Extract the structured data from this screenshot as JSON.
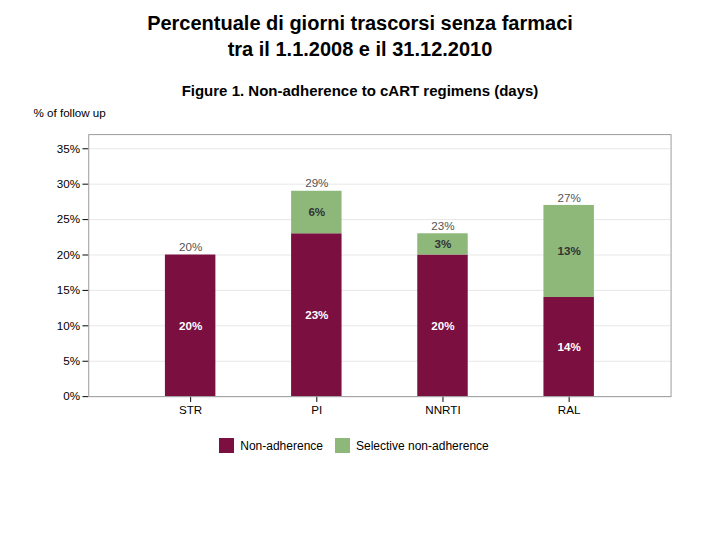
{
  "chart_data": {
    "type": "bar",
    "title": "Percentuale di giorni trascorsi senza farmaci",
    "subtitle": "tra il 1.1.2008 e il 31.12.2010",
    "annotations": [
      "Figure 1. Non-adherence to cART regimens (days)"
    ],
    "categories": [
      "STR",
      "PI",
      "NNRTI",
      "RAL"
    ],
    "series": [
      {
        "name": "Non-adherence",
        "color": "#7B1040",
        "values": [
          20,
          23,
          20,
          14
        ],
        "value_labels": [
          "20%",
          "23%",
          "20%",
          "14%"
        ]
      },
      {
        "name": "Selective non-adherence",
        "color": "#8DB87A",
        "values": [
          0,
          6,
          3,
          13
        ],
        "value_labels": [
          null,
          "6%",
          "3%",
          "13%"
        ]
      }
    ],
    "totals": [
      20,
      29,
      23,
      27
    ],
    "total_labels": [
      "20%",
      "29%",
      "23%",
      "27%"
    ],
    "ylabel": "% of follow up",
    "ylim": [
      0,
      37
    ],
    "yticks": [
      {
        "value": 0,
        "label": "0%"
      },
      {
        "value": 5,
        "label": "5%"
      },
      {
        "value": 10,
        "label": "10%"
      },
      {
        "value": 15,
        "label": "15%"
      },
      {
        "value": 20,
        "label": "20%"
      },
      {
        "value": 25,
        "label": "25%"
      },
      {
        "value": 30,
        "label": "30%"
      },
      {
        "value": 35,
        "label": "35%"
      }
    ],
    "stacked": true,
    "data_labels": true,
    "grid": true,
    "legend": "bottom"
  }
}
